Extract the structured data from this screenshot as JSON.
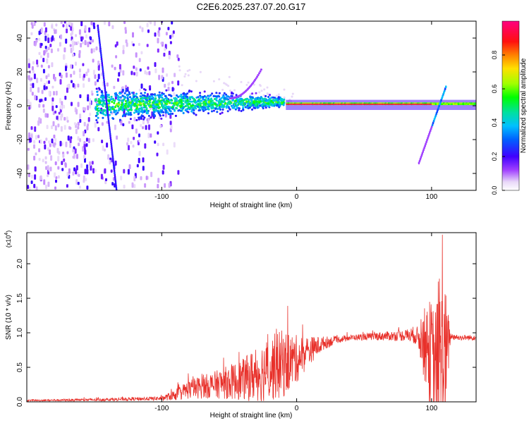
{
  "figure": {
    "title": "C2E6.2025.237.07.20.G17"
  },
  "chart_data": [
    {
      "type": "heatmap",
      "xlabel": "Height of straight line (km)",
      "ylabel": "Frequency (Hz)",
      "xlim": [
        -200,
        133
      ],
      "ylim": [
        -50,
        50
      ],
      "xticks": [
        -100,
        0,
        100
      ],
      "yticks": [
        -40,
        -20,
        0,
        20,
        40
      ],
      "colorbar": {
        "label": "Normalized spectral amplitude",
        "range": [
          0,
          1
        ],
        "ticks": [
          0.0,
          0.2,
          0.4,
          0.6,
          0.8
        ]
      },
      "features": [
        {
          "name": "scattered noise",
          "x_range": [
            -200,
            -88
          ],
          "y_range": [
            -50,
            50
          ],
          "amplitude": 0.15
        },
        {
          "name": "broadband band",
          "x_range": [
            -150,
            -10
          ],
          "y_center": 0,
          "half_width_start": 10,
          "half_width_end": 3,
          "amplitude": 0.45
        },
        {
          "name": "narrow carrier line",
          "x_range": [
            -8,
            133
          ],
          "y_center": 0.5,
          "amplitude": 0.97
        },
        {
          "name": "diagonal streak",
          "x_start": -148,
          "y_start": 48,
          "x_end": -134,
          "y_end": -50
        },
        {
          "name": "upper arc",
          "x_start": -50,
          "y_start": 5,
          "x_end": -27,
          "y_end": 22
        },
        {
          "name": "rising streak",
          "x_start": 90,
          "y_start": -33,
          "x_end": 110,
          "y_end": 12
        }
      ]
    },
    {
      "type": "line",
      "xlabel": "Height of straight line (km)",
      "ylabel": "SNR (10 * v/v)",
      "y_multiplier": "(x10",
      "y_exponent": "4",
      "xlim": [
        -200,
        133
      ],
      "ylim": [
        0,
        2.45
      ],
      "xticks": [
        -100,
        0,
        100
      ],
      "yticks": [
        0.0,
        0.5,
        1.0,
        1.5,
        2.0
      ],
      "series": [
        {
          "name": "SNR",
          "color": "#e8302a",
          "envelope_x": [
            -200,
            -150,
            -100,
            -90,
            -80,
            -60,
            -40,
            -30,
            -20,
            -10,
            0,
            10,
            20,
            30,
            40,
            60,
            80,
            88,
            92,
            98,
            102,
            106,
            108,
            110,
            114,
            120,
            133
          ],
          "envelope_y": [
            0.02,
            0.03,
            0.05,
            0.1,
            0.18,
            0.25,
            0.32,
            0.4,
            0.48,
            0.55,
            0.62,
            0.75,
            0.85,
            0.9,
            0.93,
            0.95,
            0.96,
            0.97,
            0.9,
            0.75,
            0.5,
            0.6,
            0.5,
            0.6,
            0.95,
            0.93,
            0.93
          ],
          "noise_x": [
            -200,
            -100,
            -90,
            -80,
            -60,
            -40,
            -30,
            -20,
            -10,
            0,
            10,
            20,
            30,
            40,
            60,
            80,
            90,
            95,
            100,
            105,
            108,
            110,
            112,
            114,
            120,
            133
          ],
          "noise_y": [
            0.01,
            0.03,
            0.08,
            0.14,
            0.2,
            0.3,
            0.4,
            0.48,
            0.5,
            0.35,
            0.2,
            0.1,
            0.05,
            0.04,
            0.06,
            0.08,
            0.15,
            0.55,
            0.85,
            0.95,
            1.2,
            1.1,
            0.6,
            0.05,
            0.04,
            0.04
          ],
          "peak": {
            "x": 108,
            "y": 2.42
          }
        }
      ]
    }
  ]
}
